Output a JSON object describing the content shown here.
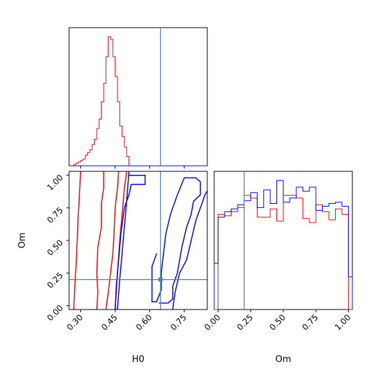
{
  "chart_data": {
    "type": "corner",
    "parameters": [
      "H0",
      "Om"
    ],
    "truth": {
      "H0": 0.647,
      "Om": 0.2
    },
    "series_colors": {
      "red": "#ff0000",
      "blue": "#0000ff",
      "truth": "#4682b4"
    },
    "panels": [
      {
        "id": "hist-H0",
        "type": "step-histogram",
        "xlim": [
          0.25,
          0.85
        ],
        "xticks": [
          0.3,
          0.45,
          0.6,
          0.75
        ],
        "xticklabels_shown": false,
        "bin_edges": [
          0.25,
          0.26,
          0.27,
          0.28,
          0.29,
          0.3,
          0.31,
          0.32,
          0.33,
          0.34,
          0.35,
          0.36,
          0.37,
          0.38,
          0.39,
          0.4,
          0.41,
          0.42,
          0.43,
          0.44,
          0.45,
          0.46,
          0.47,
          0.48,
          0.49,
          0.5,
          0.51,
          0.52,
          0.53,
          0.54,
          0.55,
          0.56,
          0.57,
          0.58,
          0.59,
          0.6,
          0.61,
          0.62,
          0.63,
          0.64,
          0.65,
          0.66,
          0.67,
          0.68,
          0.69,
          0.7,
          0.71,
          0.72,
          0.73,
          0.74,
          0.75,
          0.76,
          0.77,
          0.78,
          0.79,
          0.8,
          0.81,
          0.82,
          0.83,
          0.84,
          0.85
        ],
        "series": [
          {
            "color": "red",
            "values": [
              0,
              0,
              1,
              2,
              3,
              4,
              5,
              8,
              10,
              12,
              16,
              20,
              28,
              35,
              48,
              62,
              82,
              97,
              95,
              82,
              67,
              48,
              30,
              22,
              14,
              7,
              0,
              0,
              0,
              0,
              0,
              0,
              0,
              0,
              0,
              0,
              0,
              0,
              0,
              0,
              0,
              0,
              0,
              0,
              0,
              0,
              0,
              0,
              0,
              0,
              0,
              0,
              0,
              0,
              0,
              0,
              0,
              0,
              0,
              0
            ]
          },
          {
            "color": "blue",
            "values": [
              0,
              0,
              0,
              0,
              0,
              0,
              0,
              0,
              0,
              0,
              0,
              0,
              0,
              0,
              0,
              0,
              0,
              0,
              0,
              0,
              0,
              0,
              0,
              0,
              0,
              0,
              0,
              0,
              0,
              0,
              0,
              0,
              0,
              0,
              0,
              0,
              0,
              0,
              0,
              0,
              0,
              0,
              0,
              0,
              0,
              0,
              0,
              0,
              0,
              0,
              0,
              0,
              0,
              0,
              0,
              0,
              0,
              0,
              0,
              0
            ]
          }
        ]
      },
      {
        "id": "hist-Om",
        "type": "step-histogram",
        "xlim": [
          -0.03,
          1.03
        ],
        "xticks": [
          0.0,
          0.25,
          0.5,
          0.75,
          1.0
        ],
        "xticklabels": [
          "0.00",
          "0.25",
          "0.50",
          "0.75",
          "1.00"
        ],
        "xlabel": "Om",
        "bin_edges": [
          -0.03,
          0.0,
          0.05,
          0.1,
          0.15,
          0.2,
          0.25,
          0.3,
          0.35,
          0.4,
          0.45,
          0.5,
          0.55,
          0.6,
          0.65,
          0.7,
          0.75,
          0.8,
          0.85,
          0.9,
          0.95,
          1.0,
          1.03
        ],
        "series": [
          {
            "color": "red",
            "values": [
              0,
              70,
              69,
              72,
              75,
              84,
              82,
              68,
              68,
              74,
              65,
              84,
              84,
              82,
              67,
              64,
              77,
              72,
              66,
              74,
              70,
              0
            ]
          },
          {
            "color": "blue",
            "values": [
              34,
              68,
              72,
              74,
              77,
              80,
              86,
              75,
              88,
              78,
              95,
              79,
              82,
              90,
              87,
              90,
              73,
              76,
              78,
              79,
              76,
              24
            ]
          }
        ]
      },
      {
        "id": "scatter-H0-Om",
        "type": "contour",
        "xlim": [
          0.25,
          0.85
        ],
        "ylim": [
          -0.03,
          1.03
        ],
        "xticks": [
          0.3,
          0.45,
          0.6,
          0.75
        ],
        "xticklabels": [
          "0.30",
          "0.45",
          "0.60",
          "0.75"
        ],
        "yticks": [
          0.0,
          0.25,
          0.5,
          0.75,
          1.0
        ],
        "yticklabels": [
          "0.00",
          "0.25",
          "0.50",
          "0.75",
          "1.00"
        ],
        "xlabel": "H0",
        "ylabel": "Om",
        "contours": [
          {
            "color": "red",
            "points": [
              [
                0.27,
                -0.03
              ],
              [
                0.275,
                0.15
              ],
              [
                0.28,
                0.3
              ],
              [
                0.285,
                0.5
              ],
              [
                0.29,
                0.7
              ],
              [
                0.295,
                0.85
              ],
              [
                0.3,
                1.03
              ]
            ]
          },
          {
            "color": "red",
            "points": [
              [
                0.37,
                -0.03
              ],
              [
                0.375,
                0.1
              ],
              [
                0.37,
                0.25
              ],
              [
                0.375,
                0.45
              ],
              [
                0.39,
                0.6
              ],
              [
                0.39,
                0.78
              ],
              [
                0.4,
                0.9
              ],
              [
                0.4,
                1.03
              ]
            ]
          },
          {
            "color": "red",
            "points": [
              [
                0.41,
                -0.03
              ],
              [
                0.42,
                0.1
              ],
              [
                0.43,
                0.25
              ],
              [
                0.44,
                0.4
              ],
              [
                0.445,
                0.55
              ],
              [
                0.45,
                0.75
              ],
              [
                0.46,
                0.9
              ],
              [
                0.465,
                1.03
              ]
            ]
          },
          {
            "color": "red",
            "points": [
              [
                0.45,
                -0.03
              ],
              [
                0.455,
                0.1
              ],
              [
                0.46,
                0.25
              ],
              [
                0.47,
                0.5
              ],
              [
                0.48,
                0.7
              ],
              [
                0.49,
                0.9
              ],
              [
                0.5,
                1.03
              ]
            ]
          },
          {
            "color": "blue",
            "points": [
              [
                0.46,
                -0.03
              ],
              [
                0.47,
                0.2
              ],
              [
                0.48,
                0.4
              ],
              [
                0.49,
                0.6
              ],
              [
                0.5,
                0.8
              ],
              [
                0.51,
                1.03
              ]
            ]
          },
          {
            "color": "blue",
            "points": [
              [
                0.51,
                1.0
              ],
              [
                0.53,
                1.0
              ],
              [
                0.58,
                1.0
              ],
              [
                0.58,
                0.93
              ],
              [
                0.52,
                0.93
              ],
              [
                0.51,
                0.85
              ],
              [
                0.49,
                0.75
              ],
              [
                0.475,
                0.55
              ],
              [
                0.465,
                0.35
              ],
              [
                0.455,
                0.15
              ],
              [
                0.45,
                -0.03
              ]
            ]
          },
          {
            "color": "blue",
            "points": [
              [
                0.63,
                0.4
              ],
              [
                0.61,
                0.3
              ],
              [
                0.61,
                0.15
              ],
              [
                0.61,
                0.03
              ],
              [
                0.63,
                0.03
              ],
              [
                0.65,
                0.12
              ],
              [
                0.65,
                0.25
              ],
              [
                0.66,
                0.4
              ],
              [
                0.67,
                0.55
              ],
              [
                0.69,
                0.7
              ],
              [
                0.72,
                0.85
              ],
              [
                0.75,
                0.98
              ],
              [
                0.8,
                0.98
              ],
              [
                0.82,
                0.95
              ],
              [
                0.82,
                0.85
              ],
              [
                0.79,
                0.8
              ],
              [
                0.78,
                0.7
              ],
              [
                0.76,
                0.6
              ],
              [
                0.74,
                0.45
              ],
              [
                0.73,
                0.35
              ],
              [
                0.72,
                0.25
              ],
              [
                0.7,
                0.15
              ],
              [
                0.7,
                0.05
              ],
              [
                0.68,
                0.02
              ],
              [
                0.64,
                0.02
              ]
            ]
          },
          {
            "color": "blue",
            "points": [
              [
                0.7,
                -0.03
              ],
              [
                0.71,
                0.1
              ],
              [
                0.73,
                0.25
              ],
              [
                0.76,
                0.35
              ],
              [
                0.78,
                0.5
              ],
              [
                0.8,
                0.65
              ],
              [
                0.82,
                0.75
              ],
              [
                0.84,
                0.85
              ],
              [
                0.85,
                0.88
              ]
            ]
          }
        ]
      }
    ]
  }
}
